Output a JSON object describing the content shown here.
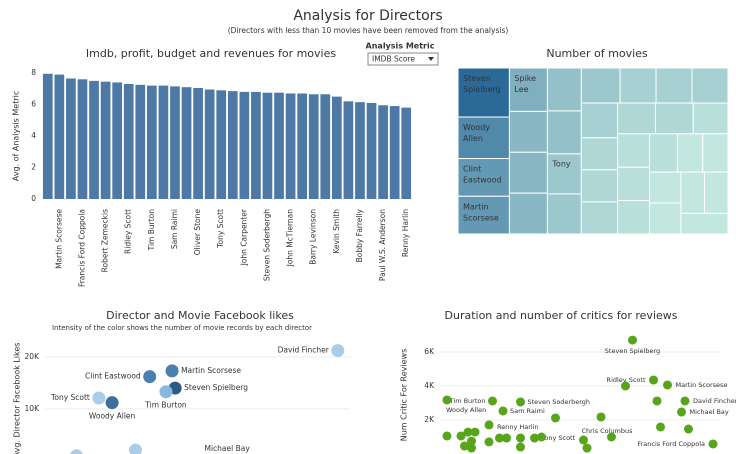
{
  "title": "Analysis for Directors",
  "subtitle": "(Directors with less than 10 movies have been removed from the analysis)",
  "controls": {
    "label": "Analysis Metric",
    "value": "IMDB Score"
  },
  "chart_data": [
    {
      "type": "bar",
      "title": "Imdb, profit, budget and revenues for movies",
      "y_label": "Avg. of Analysis Metric",
      "categories": [
        null,
        "Martin Scorsese",
        null,
        "Francis Ford Coppola",
        null,
        "Robert Zemeckis",
        null,
        "Ridley Scott",
        null,
        "Tim Burton",
        null,
        "Sam Raimi",
        null,
        "Oliver Stone",
        null,
        "Tony Scott",
        null,
        "John Carpenter",
        null,
        "Steven Soderbergh",
        null,
        "John McTiernan",
        null,
        "Barry Levinson",
        null,
        "Kevin Smith",
        null,
        "Bobby Farrelly",
        null,
        "Paul W.S. Anderson",
        null,
        "Renny Harlin"
      ],
      "values": [
        7.95,
        7.9,
        7.65,
        7.6,
        7.5,
        7.45,
        7.4,
        7.3,
        7.25,
        7.2,
        7.2,
        7.15,
        7.1,
        7.05,
        6.95,
        6.9,
        6.85,
        6.8,
        6.8,
        6.75,
        6.75,
        6.7,
        6.7,
        6.65,
        6.65,
        6.5,
        6.2,
        6.15,
        6.1,
        5.95,
        5.9,
        5.8
      ],
      "color": "#4e79a7",
      "ylim": [
        0,
        8
      ],
      "yticks": [
        0,
        2,
        4,
        6,
        8
      ],
      "grid": false
    },
    {
      "type": "treemap",
      "title": "Number of movies",
      "names": [
        "Steven Spielberg",
        "Woody Allen",
        "Clint Eastwood",
        "Martin Scorsese",
        "Spike Lee",
        null,
        null,
        null,
        null,
        null,
        "Tony",
        null,
        null,
        null,
        null,
        null,
        null,
        null,
        null,
        null,
        null,
        null,
        null,
        null,
        null,
        null,
        null,
        null,
        null,
        null,
        null,
        null,
        null,
        null
      ],
      "values": [
        26,
        22,
        20,
        20,
        17,
        16,
        16,
        16,
        15,
        15,
        14,
        14,
        14,
        13,
        13,
        13,
        13,
        12,
        12,
        12,
        12,
        12,
        11,
        11,
        11,
        11,
        11,
        10,
        10,
        10,
        10,
        10,
        10,
        10
      ],
      "color_range": [
        "#2b6a98",
        "#c2e7df"
      ]
    },
    {
      "type": "scatter",
      "title": "Director and Movie Facebook likes",
      "subtitle": "Intensity of the color shows the number of movie records by each director",
      "y_label": "Avg. Director Facebook Likes",
      "point_labels": [
        "David Fincher",
        "Martin Scorsese",
        "Clint Eastwood",
        "Steven Spielberg",
        "Tim Burton",
        "Tony Scott",
        "Woody Allen",
        "Michael Bay",
        null
      ],
      "x": [
        28800,
        12500,
        10300,
        12800,
        11900,
        5300,
        6600,
        8900,
        3100
      ],
      "values": [
        21200,
        17300,
        16200,
        14000,
        13300,
        12100,
        11200,
        2100,
        1000
      ],
      "colors": [
        "#a9cde8",
        "#4a7fb0",
        "#4a7fb0",
        "#2a5b86",
        "#8ab8dc",
        "#a9cde8",
        "#3e6f9f",
        "#a9cde8",
        "#a9cde8"
      ],
      "xlim": [
        0,
        30000
      ],
      "ylim": [
        0,
        24000
      ],
      "yticks": [
        {
          "value": 10000,
          "label": "10K"
        },
        {
          "value": 20000,
          "label": "20K"
        }
      ],
      "grid": true
    },
    {
      "type": "scatter",
      "title": "Duration and number of critics for reviews",
      "y_label": "Num Critic For Reviews",
      "point_labels": [
        "Steven Spielberg",
        "Ridley Scott",
        "Martin Scorsese",
        null,
        "David Fincher",
        null,
        "Michael Bay",
        "Tim Burton",
        "Steven Soderbergh",
        "Sam Raimi",
        "Woody Allen",
        null,
        null,
        "Renny Harlin",
        "Tony Scott",
        "Chris Columbus",
        "Francis Ford Coppola",
        null,
        null,
        null,
        null,
        null,
        null,
        null,
        null,
        null,
        null,
        null,
        null,
        null,
        null,
        null,
        null,
        null
      ],
      "x": [
        145,
        151,
        155,
        143,
        160,
        152,
        159,
        105,
        113,
        108,
        92,
        123,
        136,
        104,
        117,
        131,
        168,
        92,
        96,
        98,
        100,
        99,
        97,
        104,
        107,
        109,
        113,
        119,
        132,
        139,
        153,
        161,
        113,
        99
      ],
      "values": [
        6700,
        4350,
        4060,
        4000,
        3120,
        3120,
        2470,
        3120,
        3060,
        2530,
        3180,
        2120,
        2180,
        1710,
        940,
        820,
        590,
        1060,
        1060,
        1290,
        1290,
        760,
        470,
        710,
        940,
        940,
        940,
        1000,
        350,
        1000,
        1590,
        1470,
        410,
        350
      ],
      "color": "#58a51c",
      "xlim": [
        90,
        170
      ],
      "ylim": [
        0,
        7000
      ],
      "yticks": [
        {
          "value": 2000,
          "label": "2K"
        },
        {
          "value": 4000,
          "label": "4K"
        },
        {
          "value": 6000,
          "label": "6K"
        }
      ],
      "grid": true
    }
  ]
}
